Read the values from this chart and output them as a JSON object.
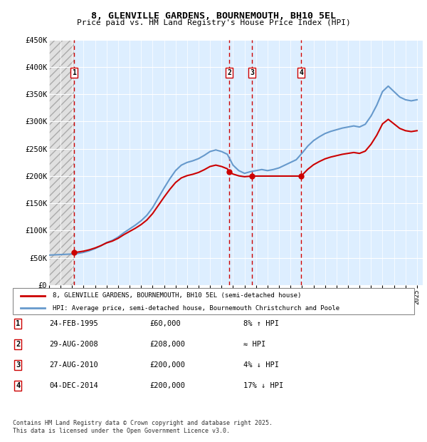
{
  "title": "8, GLENVILLE GARDENS, BOURNEMOUTH, BH10 5EL",
  "subtitle": "Price paid vs. HM Land Registry's House Price Index (HPI)",
  "ylim": [
    0,
    450000
  ],
  "yticks": [
    0,
    50000,
    100000,
    150000,
    200000,
    250000,
    300000,
    350000,
    400000,
    450000
  ],
  "ytick_labels": [
    "£0",
    "£50K",
    "£100K",
    "£150K",
    "£200K",
    "£250K",
    "£300K",
    "£350K",
    "£400K",
    "£450K"
  ],
  "xlim_start": 1993.0,
  "xlim_end": 2025.5,
  "sale_dates": [
    1995.15,
    2008.66,
    2010.66,
    2014.92
  ],
  "sale_prices": [
    60000,
    208000,
    200000,
    200000
  ],
  "sale_labels": [
    "1",
    "2",
    "3",
    "4"
  ],
  "hpi_line_color": "#6699cc",
  "sale_line_color": "#cc0000",
  "dashed_line_color": "#cc0000",
  "legend_sale_label": "8, GLENVILLE GARDENS, BOURNEMOUTH, BH10 5EL (semi-detached house)",
  "legend_hpi_label": "HPI: Average price, semi-detached house, Bournemouth Christchurch and Poole",
  "table_rows": [
    [
      "1",
      "24-FEB-1995",
      "£60,000",
      "8% ↑ HPI"
    ],
    [
      "2",
      "29-AUG-2008",
      "£208,000",
      "≈ HPI"
    ],
    [
      "3",
      "27-AUG-2010",
      "£200,000",
      "4% ↓ HPI"
    ],
    [
      "4",
      "04-DEC-2014",
      "£200,000",
      "17% ↓ HPI"
    ]
  ],
  "footnote": "Contains HM Land Registry data © Crown copyright and database right 2025.\nThis data is licensed under the Open Government Licence v3.0.",
  "bg_hatch_color": "#cccccc",
  "bg_main_color": "#ddeeff",
  "grid_color": "#ffffff"
}
